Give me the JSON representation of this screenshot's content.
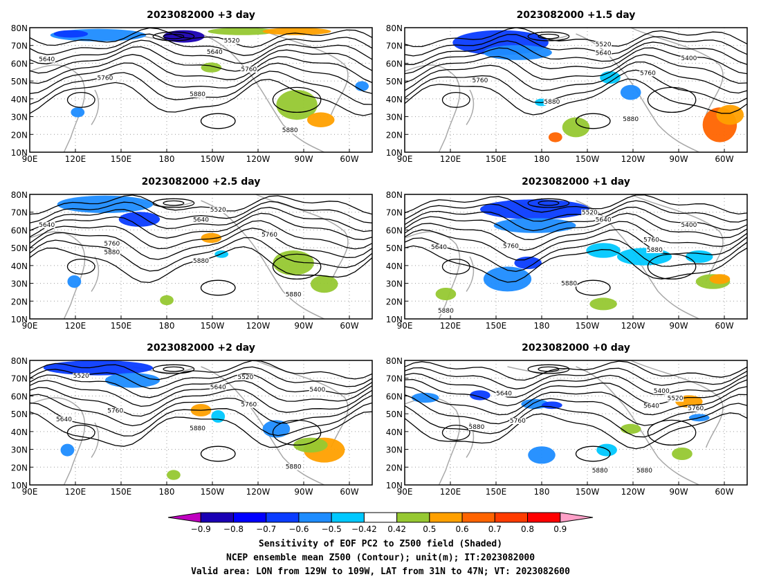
{
  "panels": [
    {
      "title": "2023082000 +3 day",
      "contour_labels": [
        "5520",
        "5640",
        "5640",
        "5760",
        "5760",
        "5880",
        "5880"
      ]
    },
    {
      "title": "2023082000 +1.5 day",
      "contour_labels": [
        "5520",
        "5640",
        "5400",
        "5760",
        "5760",
        "5880",
        "5880"
      ]
    },
    {
      "title": "2023082000 +2.5 day",
      "contour_labels": [
        "5520",
        "5640",
        "5640",
        "5760",
        "5760",
        "5880",
        "5880",
        "5880"
      ]
    },
    {
      "title": "2023082000 +1 day",
      "contour_labels": [
        "5520",
        "5640",
        "5400",
        "5640",
        "5760",
        "5760",
        "5880",
        "5880",
        "5880"
      ]
    },
    {
      "title": "2023082000 +2 day",
      "contour_labels": [
        "5520",
        "5520",
        "5640",
        "5400",
        "5640",
        "5760",
        "5760",
        "5880",
        "5880"
      ]
    },
    {
      "title": "2023082000 +0 day",
      "contour_labels": [
        "5640",
        "5400",
        "5520",
        "5640",
        "5760",
        "5760",
        "5880",
        "5880",
        "5880"
      ]
    }
  ],
  "lat_ticks": [
    "80N",
    "70N",
    "60N",
    "50N",
    "40N",
    "30N",
    "20N",
    "10N"
  ],
  "lon_ticks": [
    "90E",
    "120E",
    "150E",
    "180",
    "150W",
    "120W",
    "90W",
    "60W"
  ],
  "colorbar": {
    "labels": [
      "−0.9",
      "−0.8",
      "−0.7",
      "−0.6",
      "−0.5",
      "−0.42",
      "0.42",
      "0.5",
      "0.6",
      "0.7",
      "0.8",
      "0.9"
    ],
    "colors": [
      "#c000c0",
      "#1a00b4",
      "#0000ff",
      "#0a3cff",
      "#1e8cff",
      "#00c8ff",
      "#ffffff",
      "#96c832",
      "#ffa000",
      "#ff6400",
      "#ff3c00",
      "#ff0000",
      "#ffa0c8"
    ]
  },
  "caption": {
    "line1": "Sensitivity of EOF PC2 to Z500 field (Shaded)",
    "line2": "NCEP ensemble mean Z500 (Contour); unit(m); IT:2023082000",
    "line3": "Valid area: LON from 129W to 109W, LAT from 31N to 47N; VT: 2023082600"
  }
}
